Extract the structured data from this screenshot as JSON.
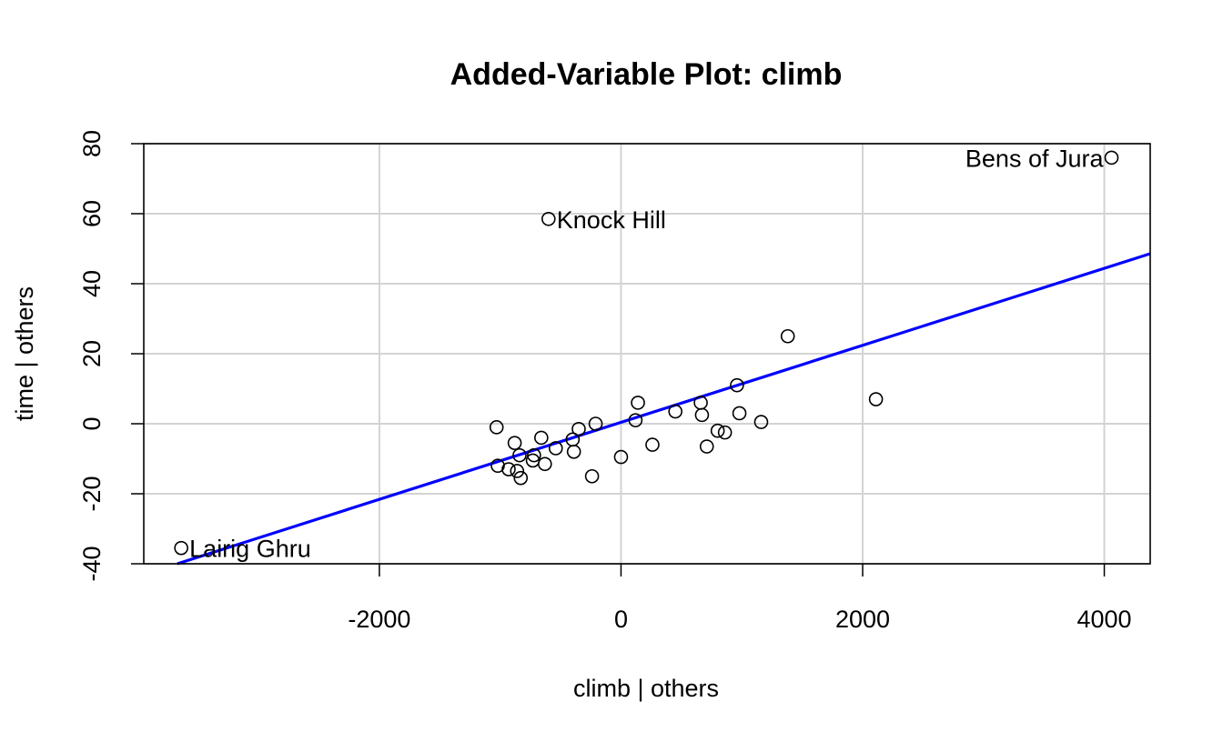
{
  "chart_data": {
    "type": "scatter",
    "title": "Added-Variable Plot: climb",
    "xlabel": "climb | others",
    "ylabel": "time  | others",
    "xlim": [
      -3950,
      4380
    ],
    "ylim": [
      -40,
      80
    ],
    "x_ticks": [
      -2000,
      0,
      2000,
      4000
    ],
    "y_ticks": [
      -40,
      -20,
      0,
      20,
      40,
      60,
      80
    ],
    "grid": true,
    "line_color": "#0000ff",
    "fit_line": {
      "intercept": 0.4,
      "slope": 0.011
    },
    "points": [
      {
        "x": -3640,
        "y": -35.5,
        "label": "Lairig Ghru",
        "label_side": "right"
      },
      {
        "x": -600,
        "y": 58.5,
        "label": "Knock Hill",
        "label_side": "right"
      },
      {
        "x": 4060,
        "y": 76,
        "label": "Bens of Jura",
        "label_side": "left"
      },
      {
        "x": -1030,
        "y": -1
      },
      {
        "x": -1020,
        "y": -12
      },
      {
        "x": -930,
        "y": -13
      },
      {
        "x": -880,
        "y": -5.5
      },
      {
        "x": -860,
        "y": -13.5
      },
      {
        "x": -840,
        "y": -9
      },
      {
        "x": -830,
        "y": -15.5
      },
      {
        "x": -730,
        "y": -10.5
      },
      {
        "x": -720,
        "y": -9
      },
      {
        "x": -660,
        "y": -4
      },
      {
        "x": -630,
        "y": -11.5
      },
      {
        "x": -540,
        "y": -7
      },
      {
        "x": -400,
        "y": -4.5
      },
      {
        "x": -390,
        "y": -8
      },
      {
        "x": -350,
        "y": -1.5
      },
      {
        "x": -240,
        "y": -15
      },
      {
        "x": -210,
        "y": 0
      },
      {
        "x": 0,
        "y": -9.5
      },
      {
        "x": 120,
        "y": 1
      },
      {
        "x": 140,
        "y": 6
      },
      {
        "x": 260,
        "y": -6
      },
      {
        "x": 450,
        "y": 3.5
      },
      {
        "x": 660,
        "y": 6
      },
      {
        "x": 670,
        "y": 2.5
      },
      {
        "x": 710,
        "y": -6.5
      },
      {
        "x": 800,
        "y": -2
      },
      {
        "x": 860,
        "y": -2.5
      },
      {
        "x": 960,
        "y": 11
      },
      {
        "x": 980,
        "y": 3
      },
      {
        "x": 1160,
        "y": 0.5
      },
      {
        "x": 1380,
        "y": 25
      },
      {
        "x": 2110,
        "y": 7
      }
    ]
  }
}
